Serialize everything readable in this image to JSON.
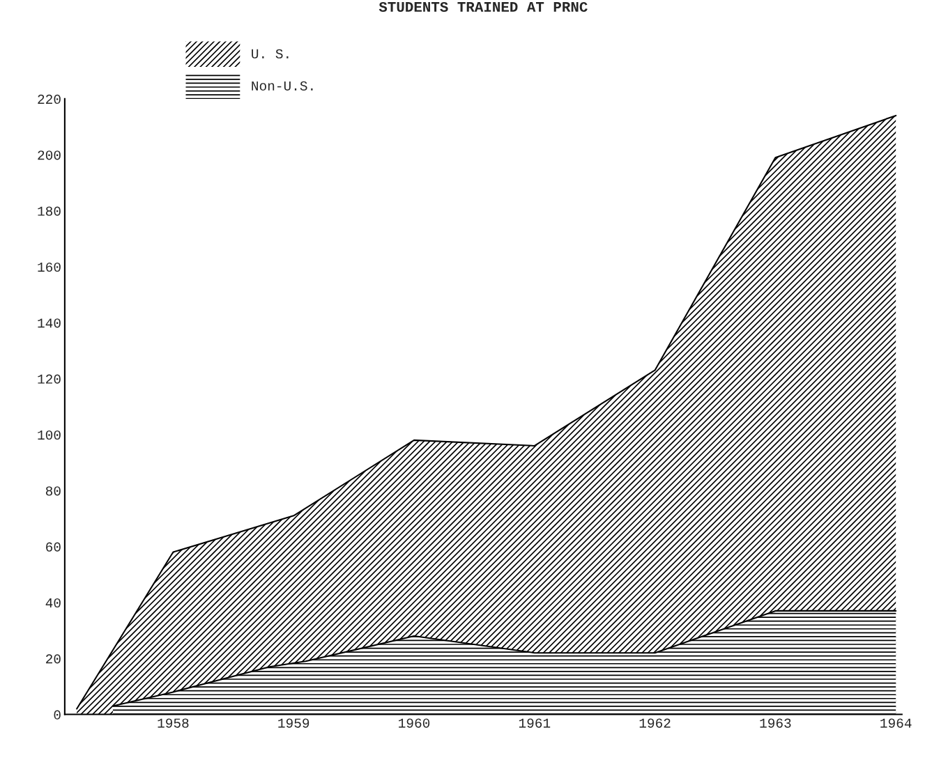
{
  "chart_data": {
    "type": "area",
    "title": "STUDENTS TRAINED AT PRNC",
    "series": [
      {
        "name": "U. S.",
        "color": "#000000",
        "x": [
          1957.2,
          1958,
          1959,
          1960,
          1961,
          1962,
          1963,
          1964
        ],
        "values": [
          2,
          58,
          71,
          98,
          96,
          123,
          199,
          214
        ]
      },
      {
        "name": "Non-U.S.",
        "color": "#000000",
        "x": [
          1957.5,
          1958,
          1958.8,
          1959.1,
          1960,
          1961,
          1962,
          1963,
          1964
        ],
        "values": [
          3,
          8,
          17,
          19,
          28,
          22,
          22,
          37,
          37
        ]
      }
    ],
    "xlim": [
      1957.1,
      1964.05
    ],
    "xticks": [
      1958,
      1959,
      1960,
      1961,
      1962,
      1963,
      1964
    ],
    "ylim": [
      0,
      220
    ],
    "yticks": [
      0,
      20,
      40,
      60,
      80,
      100,
      120,
      140,
      160,
      180,
      200,
      220
    ],
    "grid": false,
    "legend": "top left",
    "line_style": "solid"
  }
}
